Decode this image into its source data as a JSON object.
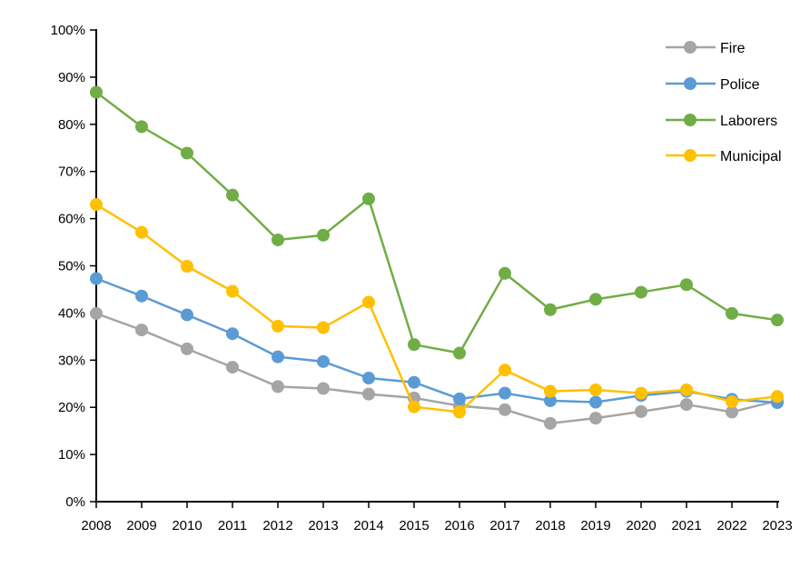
{
  "figure": {
    "background": "#FFFFFF",
    "axis_color": "#000000"
  },
  "legend": {
    "position": "top-right",
    "entries": [
      {
        "label": "Fire",
        "color": "#A5A5A5"
      },
      {
        "label": "Police",
        "color": "#5B9BD5"
      },
      {
        "label": "Laborers",
        "color": "#70AD47"
      },
      {
        "label": "Municipal",
        "color": "#FFC000"
      }
    ]
  },
  "chart_data": {
    "type": "line",
    "title": "",
    "xlabel": "",
    "ylabel": "",
    "grid": false,
    "marker": "circle",
    "legend_position": "top-right",
    "x": [
      2008,
      2009,
      2010,
      2011,
      2012,
      2013,
      2014,
      2015,
      2016,
      2017,
      2018,
      2019,
      2020,
      2021,
      2022,
      2023
    ],
    "xtick_labels": [
      "2008",
      "2009",
      "2010",
      "2011",
      "2012",
      "2013",
      "2014",
      "2015",
      "2016",
      "2017",
      "2018",
      "2019",
      "2020",
      "2021",
      "2022",
      "2023"
    ],
    "ylim": [
      0,
      100
    ],
    "ytick_step": 10,
    "ytick_labels": [
      "0%",
      "10%",
      "20%",
      "30%",
      "40%",
      "50%",
      "60%",
      "70%",
      "80%",
      "90%",
      "100%"
    ],
    "series": [
      {
        "name": "Fire",
        "color": "#A5A5A5",
        "values": [
          39.9,
          36.4,
          32.4,
          28.5,
          24.4,
          24.0,
          22.8,
          22.0,
          20.3,
          19.5,
          16.6,
          17.7,
          19.1,
          20.6,
          19.0,
          21.4
        ]
      },
      {
        "name": "Police",
        "color": "#5B9BD5",
        "values": [
          47.3,
          43.6,
          39.6,
          35.6,
          30.7,
          29.7,
          26.2,
          25.3,
          21.8,
          23.0,
          21.4,
          21.1,
          22.5,
          23.4,
          21.7,
          21.0
        ]
      },
      {
        "name": "Laborers",
        "color": "#70AD47",
        "values": [
          86.8,
          79.5,
          73.9,
          65.0,
          55.5,
          56.5,
          64.2,
          33.3,
          31.5,
          48.4,
          40.7,
          42.9,
          44.4,
          46.0,
          39.9,
          38.5
        ]
      },
      {
        "name": "Municipal",
        "color": "#FFC000",
        "values": [
          63.0,
          57.1,
          49.9,
          44.6,
          37.2,
          36.9,
          42.3,
          20.1,
          19.0,
          27.9,
          23.4,
          23.7,
          23.0,
          23.7,
          21.2,
          22.3
        ]
      }
    ]
  }
}
